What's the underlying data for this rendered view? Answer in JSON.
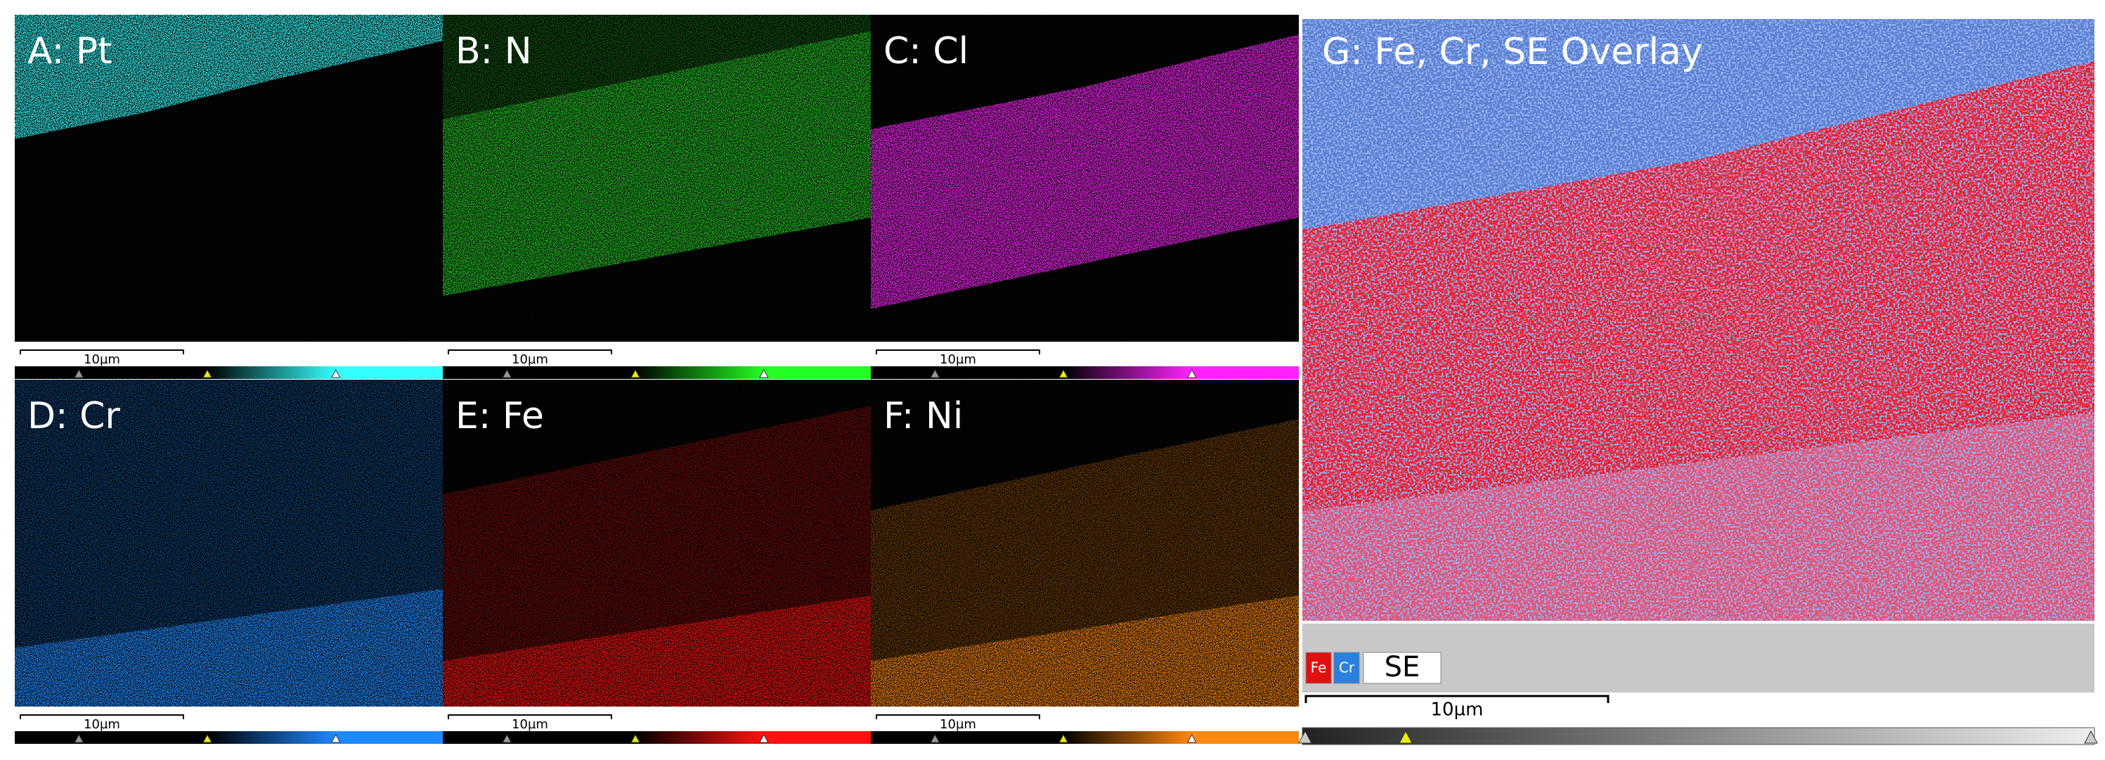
{
  "panels": [
    {
      "label": "A: Pt",
      "scale": "10µm"
    },
    {
      "label": "B: N",
      "scale": "10µm"
    },
    {
      "label": "C: Cl",
      "scale": "10µm"
    },
    {
      "label": "D: Cr",
      "scale": "10µm"
    },
    {
      "label": "E: Fe",
      "scale": "10µm"
    },
    {
      "label": "F: Ni",
      "scale": "10µm"
    }
  ],
  "overlay": {
    "label": "G: Fe, Cr, SE Overlay",
    "legend": [
      "Fe",
      "Cr",
      "SE"
    ],
    "scale": "10µm"
  }
}
